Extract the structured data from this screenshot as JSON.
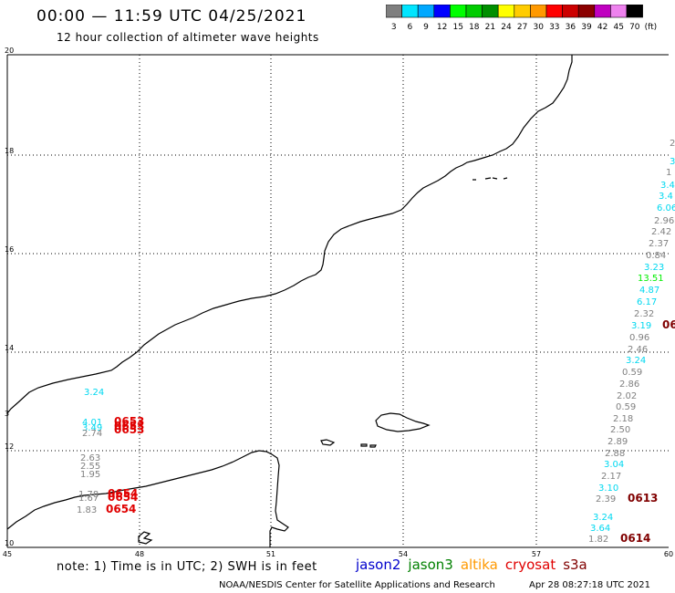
{
  "header": {
    "title": "00:00 — 11:59 UTC 04/25/2021",
    "subtitle": "12 hour collection of altimeter wave heights"
  },
  "colorbar": {
    "unit": "(ft)",
    "bins": [
      {
        "label": "3",
        "color": "#7f7f7f"
      },
      {
        "label": "6",
        "color": "#00e5ff"
      },
      {
        "label": "9",
        "color": "#00a8ff"
      },
      {
        "label": "12",
        "color": "#0000ff"
      },
      {
        "label": "15",
        "color": "#00ff00"
      },
      {
        "label": "18",
        "color": "#00cc00"
      },
      {
        "label": "21",
        "color": "#008f00"
      },
      {
        "label": "24",
        "color": "#ffff00"
      },
      {
        "label": "27",
        "color": "#ffcc00"
      },
      {
        "label": "30",
        "color": "#ff9900"
      },
      {
        "label": "33",
        "color": "#ff0000"
      },
      {
        "label": "36",
        "color": "#cc0000"
      },
      {
        "label": "39",
        "color": "#8b0000"
      },
      {
        "label": "42",
        "color": "#c000c0"
      },
      {
        "label": "45",
        "color": "#ee82ee"
      },
      {
        "label": "70",
        "color": "#000000"
      }
    ]
  },
  "map": {
    "lat_labels": [
      "20",
      "18",
      "16",
      "14",
      "12",
      "10"
    ],
    "lon_labels": [
      "45",
      "48",
      "51",
      "54",
      "57",
      "60"
    ],
    "clipped_lat_label": "3"
  },
  "observations": [
    {
      "text": "3.24",
      "color": "#00d8f0"
    },
    {
      "text": "4.01",
      "color": "#00d8f0"
    },
    {
      "text": "3.49",
      "color": "#00d8f0"
    },
    {
      "text": "2.74",
      "color": "#808080"
    },
    {
      "text": "0653",
      "color": "#e00000"
    },
    {
      "text": "0653",
      "color": "#e00000"
    },
    {
      "text": "0653",
      "color": "#e00000"
    },
    {
      "text": "2.63",
      "color": "#808080"
    },
    {
      "text": "2.55",
      "color": "#808080"
    },
    {
      "text": "1.95",
      "color": "#808080"
    },
    {
      "text": "1.78",
      "color": "#808080"
    },
    {
      "text": "1.67",
      "color": "#808080"
    },
    {
      "text": "0654",
      "color": "#e00000"
    },
    {
      "text": "0654",
      "color": "#e00000"
    },
    {
      "text": "1.83",
      "color": "#808080"
    },
    {
      "text": "0654",
      "color": "#e00000"
    },
    {
      "text": "2",
      "color": "#808080"
    },
    {
      "text": "3",
      "color": "#00d8f0"
    },
    {
      "text": "1",
      "color": "#808080"
    },
    {
      "text": "3.4",
      "color": "#00d8f0"
    },
    {
      "text": "3.4",
      "color": "#00d8f0"
    },
    {
      "text": "6.06",
      "color": "#00d8f0"
    },
    {
      "text": "2.96",
      "color": "#808080"
    },
    {
      "text": "2.42",
      "color": "#808080"
    },
    {
      "text": "2.37",
      "color": "#808080"
    },
    {
      "text": "0.84",
      "color": "#808080"
    },
    {
      "text": "3.23",
      "color": "#00d8f0"
    },
    {
      "text": "13.51",
      "color": "#00ee00"
    },
    {
      "text": "4.87",
      "color": "#00d8f0"
    },
    {
      "text": "6.17",
      "color": "#00d8f0"
    },
    {
      "text": "2.32",
      "color": "#808080"
    },
    {
      "text": "3.19",
      "color": "#00d8f0"
    },
    {
      "text": "06",
      "color": "#800000"
    },
    {
      "text": "0.96",
      "color": "#808080"
    },
    {
      "text": "2.46",
      "color": "#808080"
    },
    {
      "text": "3.24",
      "color": "#00d8f0"
    },
    {
      "text": "0.59",
      "color": "#808080"
    },
    {
      "text": "2.86",
      "color": "#808080"
    },
    {
      "text": "2.02",
      "color": "#808080"
    },
    {
      "text": "0.59",
      "color": "#808080"
    },
    {
      "text": "2.18",
      "color": "#808080"
    },
    {
      "text": "2.50",
      "color": "#808080"
    },
    {
      "text": "2.89",
      "color": "#808080"
    },
    {
      "text": "2.88",
      "color": "#808080"
    },
    {
      "text": "3.04",
      "color": "#00d8f0"
    },
    {
      "text": "2.17",
      "color": "#808080"
    },
    {
      "text": "3.10",
      "color": "#00d8f0"
    },
    {
      "text": "2.39",
      "color": "#808080"
    },
    {
      "text": "0613",
      "color": "#800000"
    },
    {
      "text": "3.24",
      "color": "#00d8f0"
    },
    {
      "text": "3.64",
      "color": "#00d8f0"
    },
    {
      "text": "1.82",
      "color": "#808080"
    },
    {
      "text": "0614",
      "color": "#800000"
    }
  ],
  "footer": {
    "note": "note: 1) Time is in UTC; 2) SWH is in feet",
    "satellites": [
      {
        "name": "jason2",
        "color": "#0000cc"
      },
      {
        "name": "jason3",
        "color": "#008000"
      },
      {
        "name": "altika",
        "color": "#ff9900"
      },
      {
        "name": "cryosat",
        "color": "#e00000"
      },
      {
        "name": "s3a",
        "color": "#800000"
      }
    ],
    "credit": "NOAA/NESDIS Center for Satellite Applications and Research",
    "timestamp": "Apr 28 08:27:18 UTC 2021"
  }
}
